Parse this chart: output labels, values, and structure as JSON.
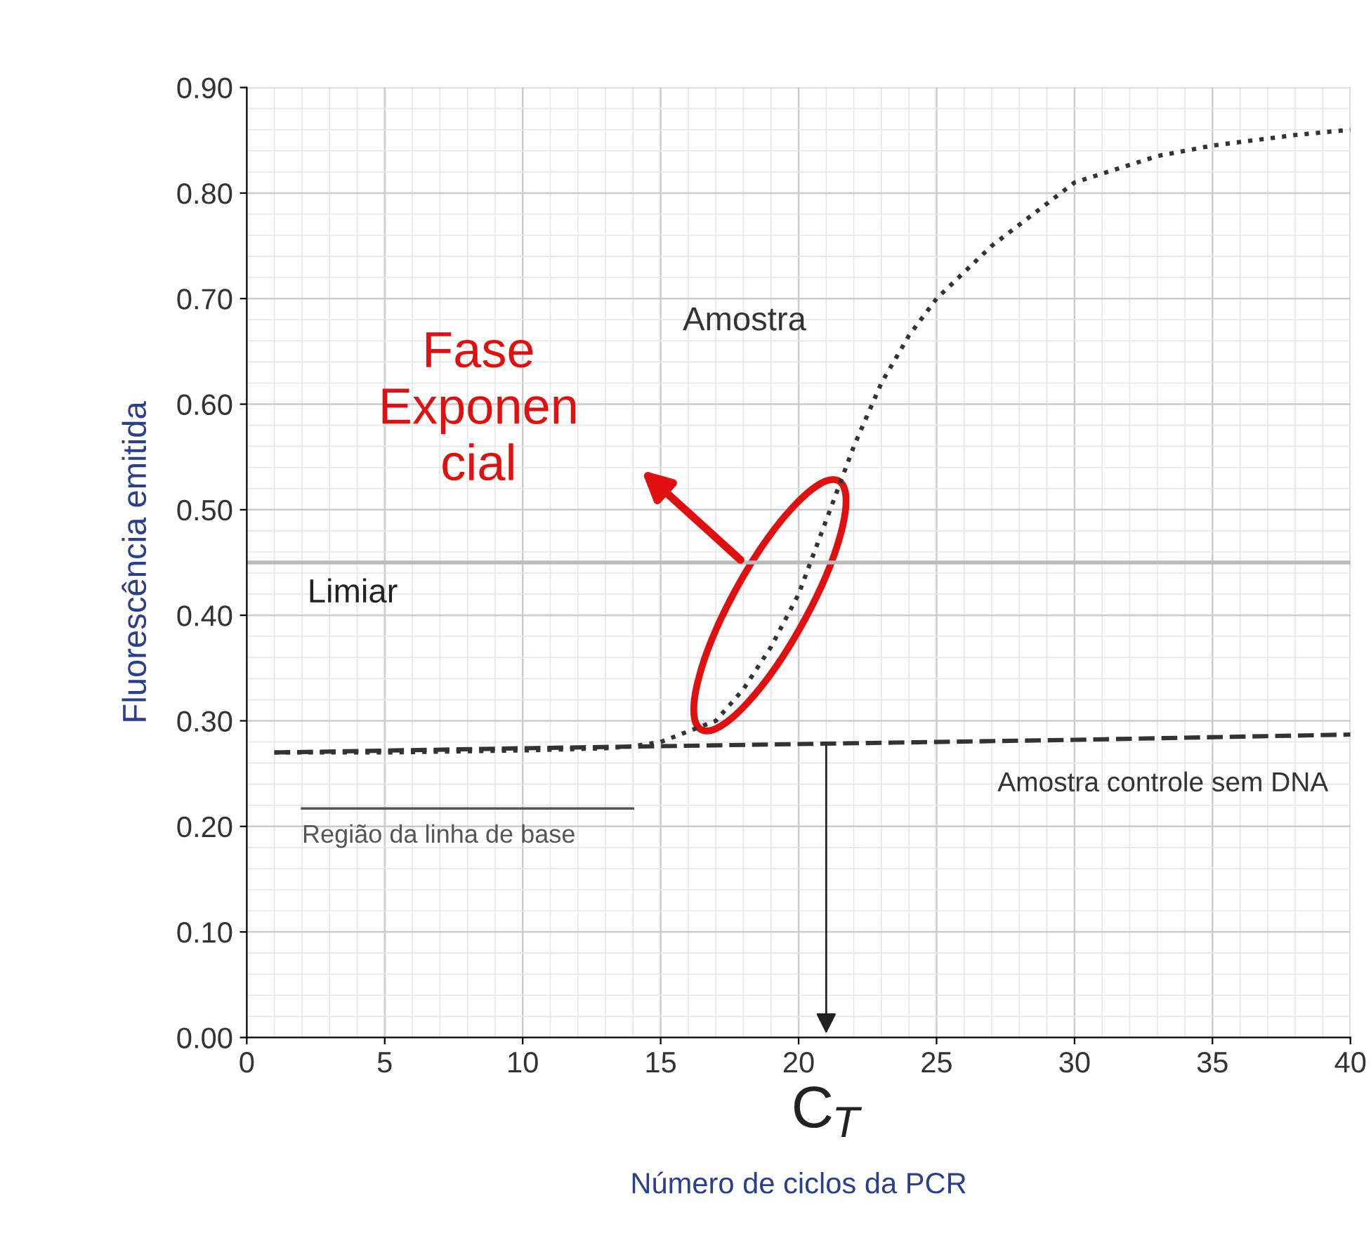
{
  "chart_data": {
    "type": "line",
    "xlabel": "Número de ciclos da PCR",
    "ylabel": "Fluorescência emitida",
    "xlim": [
      0,
      40
    ],
    "ylim": [
      0,
      0.9
    ],
    "xticks": [
      0,
      5,
      10,
      15,
      20,
      25,
      30,
      35,
      40
    ],
    "yticks": [
      {
        "value": 0,
        "label": "0.00"
      },
      {
        "value": 0.1,
        "label": "0.10"
      },
      {
        "value": 0.2,
        "label": "0.20"
      },
      {
        "value": 0.3,
        "label": "0.30"
      },
      {
        "value": 0.4,
        "label": "0.40"
      },
      {
        "value": 0.5,
        "label": "0.50"
      },
      {
        "value": 0.6,
        "label": "0.60"
      },
      {
        "value": 0.7,
        "label": "0.70"
      },
      {
        "value": 0.8,
        "label": "0.80"
      },
      {
        "value": 0.9,
        "label": "0.90"
      }
    ],
    "grid": true,
    "marker": "none",
    "series": [
      {
        "name": "Amostra",
        "color": "#333333",
        "line_style": "dotted",
        "x": [
          1,
          5,
          10,
          13,
          14,
          15,
          16,
          17,
          18,
          19,
          20,
          21,
          22,
          23,
          24,
          25,
          27,
          30,
          33,
          35,
          38,
          40
        ],
        "values": [
          0.27,
          0.27,
          0.272,
          0.274,
          0.276,
          0.28,
          0.29,
          0.3,
          0.33,
          0.37,
          0.42,
          0.49,
          0.56,
          0.62,
          0.665,
          0.7,
          0.75,
          0.81,
          0.835,
          0.845,
          0.855,
          0.86
        ]
      },
      {
        "name": "Amostra controle sem DNA",
        "color": "#333333",
        "line_style": "dashed",
        "x": [
          1,
          10,
          20,
          30,
          40
        ],
        "values": [
          0.27,
          0.274,
          0.278,
          0.282,
          0.287
        ]
      },
      {
        "name": "Região da linha de base",
        "color": "#555555",
        "line_style": "solid",
        "x": [
          2,
          14
        ],
        "values": [
          0.217,
          0.217
        ]
      }
    ],
    "ref_lines": [
      {
        "axis": "y",
        "value": 0.45,
        "label": "Limiar",
        "color": "#bbbbbb",
        "line_style": "solid"
      }
    ],
    "annotations": [
      {
        "text": "C$_{T}$",
        "x": 21,
        "y": 0.28
      },
      "Fase\nExponen\ncial"
    ]
  }
}
